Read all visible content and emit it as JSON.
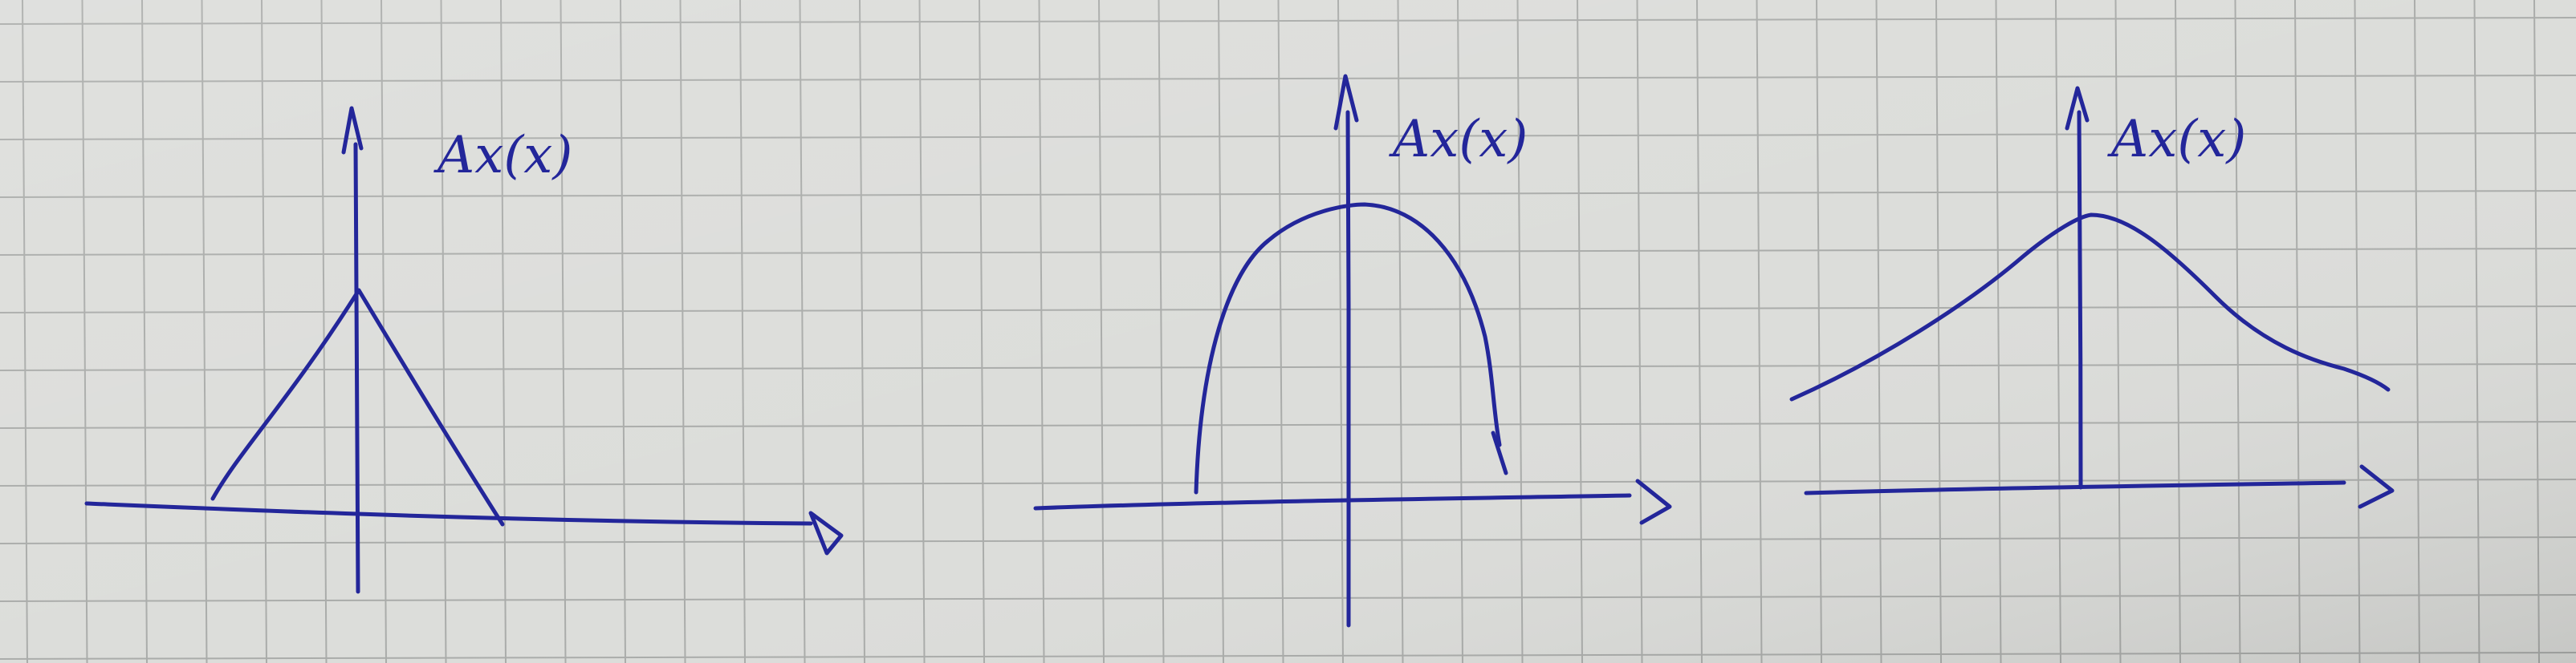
{
  "paper": {
    "color": "#dcddda",
    "grid_color": "#9a9c9a"
  },
  "ink": {
    "color": "#23269a"
  },
  "sketches": [
    {
      "id": "triangle",
      "label": "A_x(x)",
      "label_text": "Ax(x)"
    },
    {
      "id": "semicircle",
      "label": "A_x(x)",
      "label_text": "Ax(x)"
    },
    {
      "id": "bell",
      "label": "A_x(x)",
      "label_text": "Ax(x)"
    }
  ]
}
